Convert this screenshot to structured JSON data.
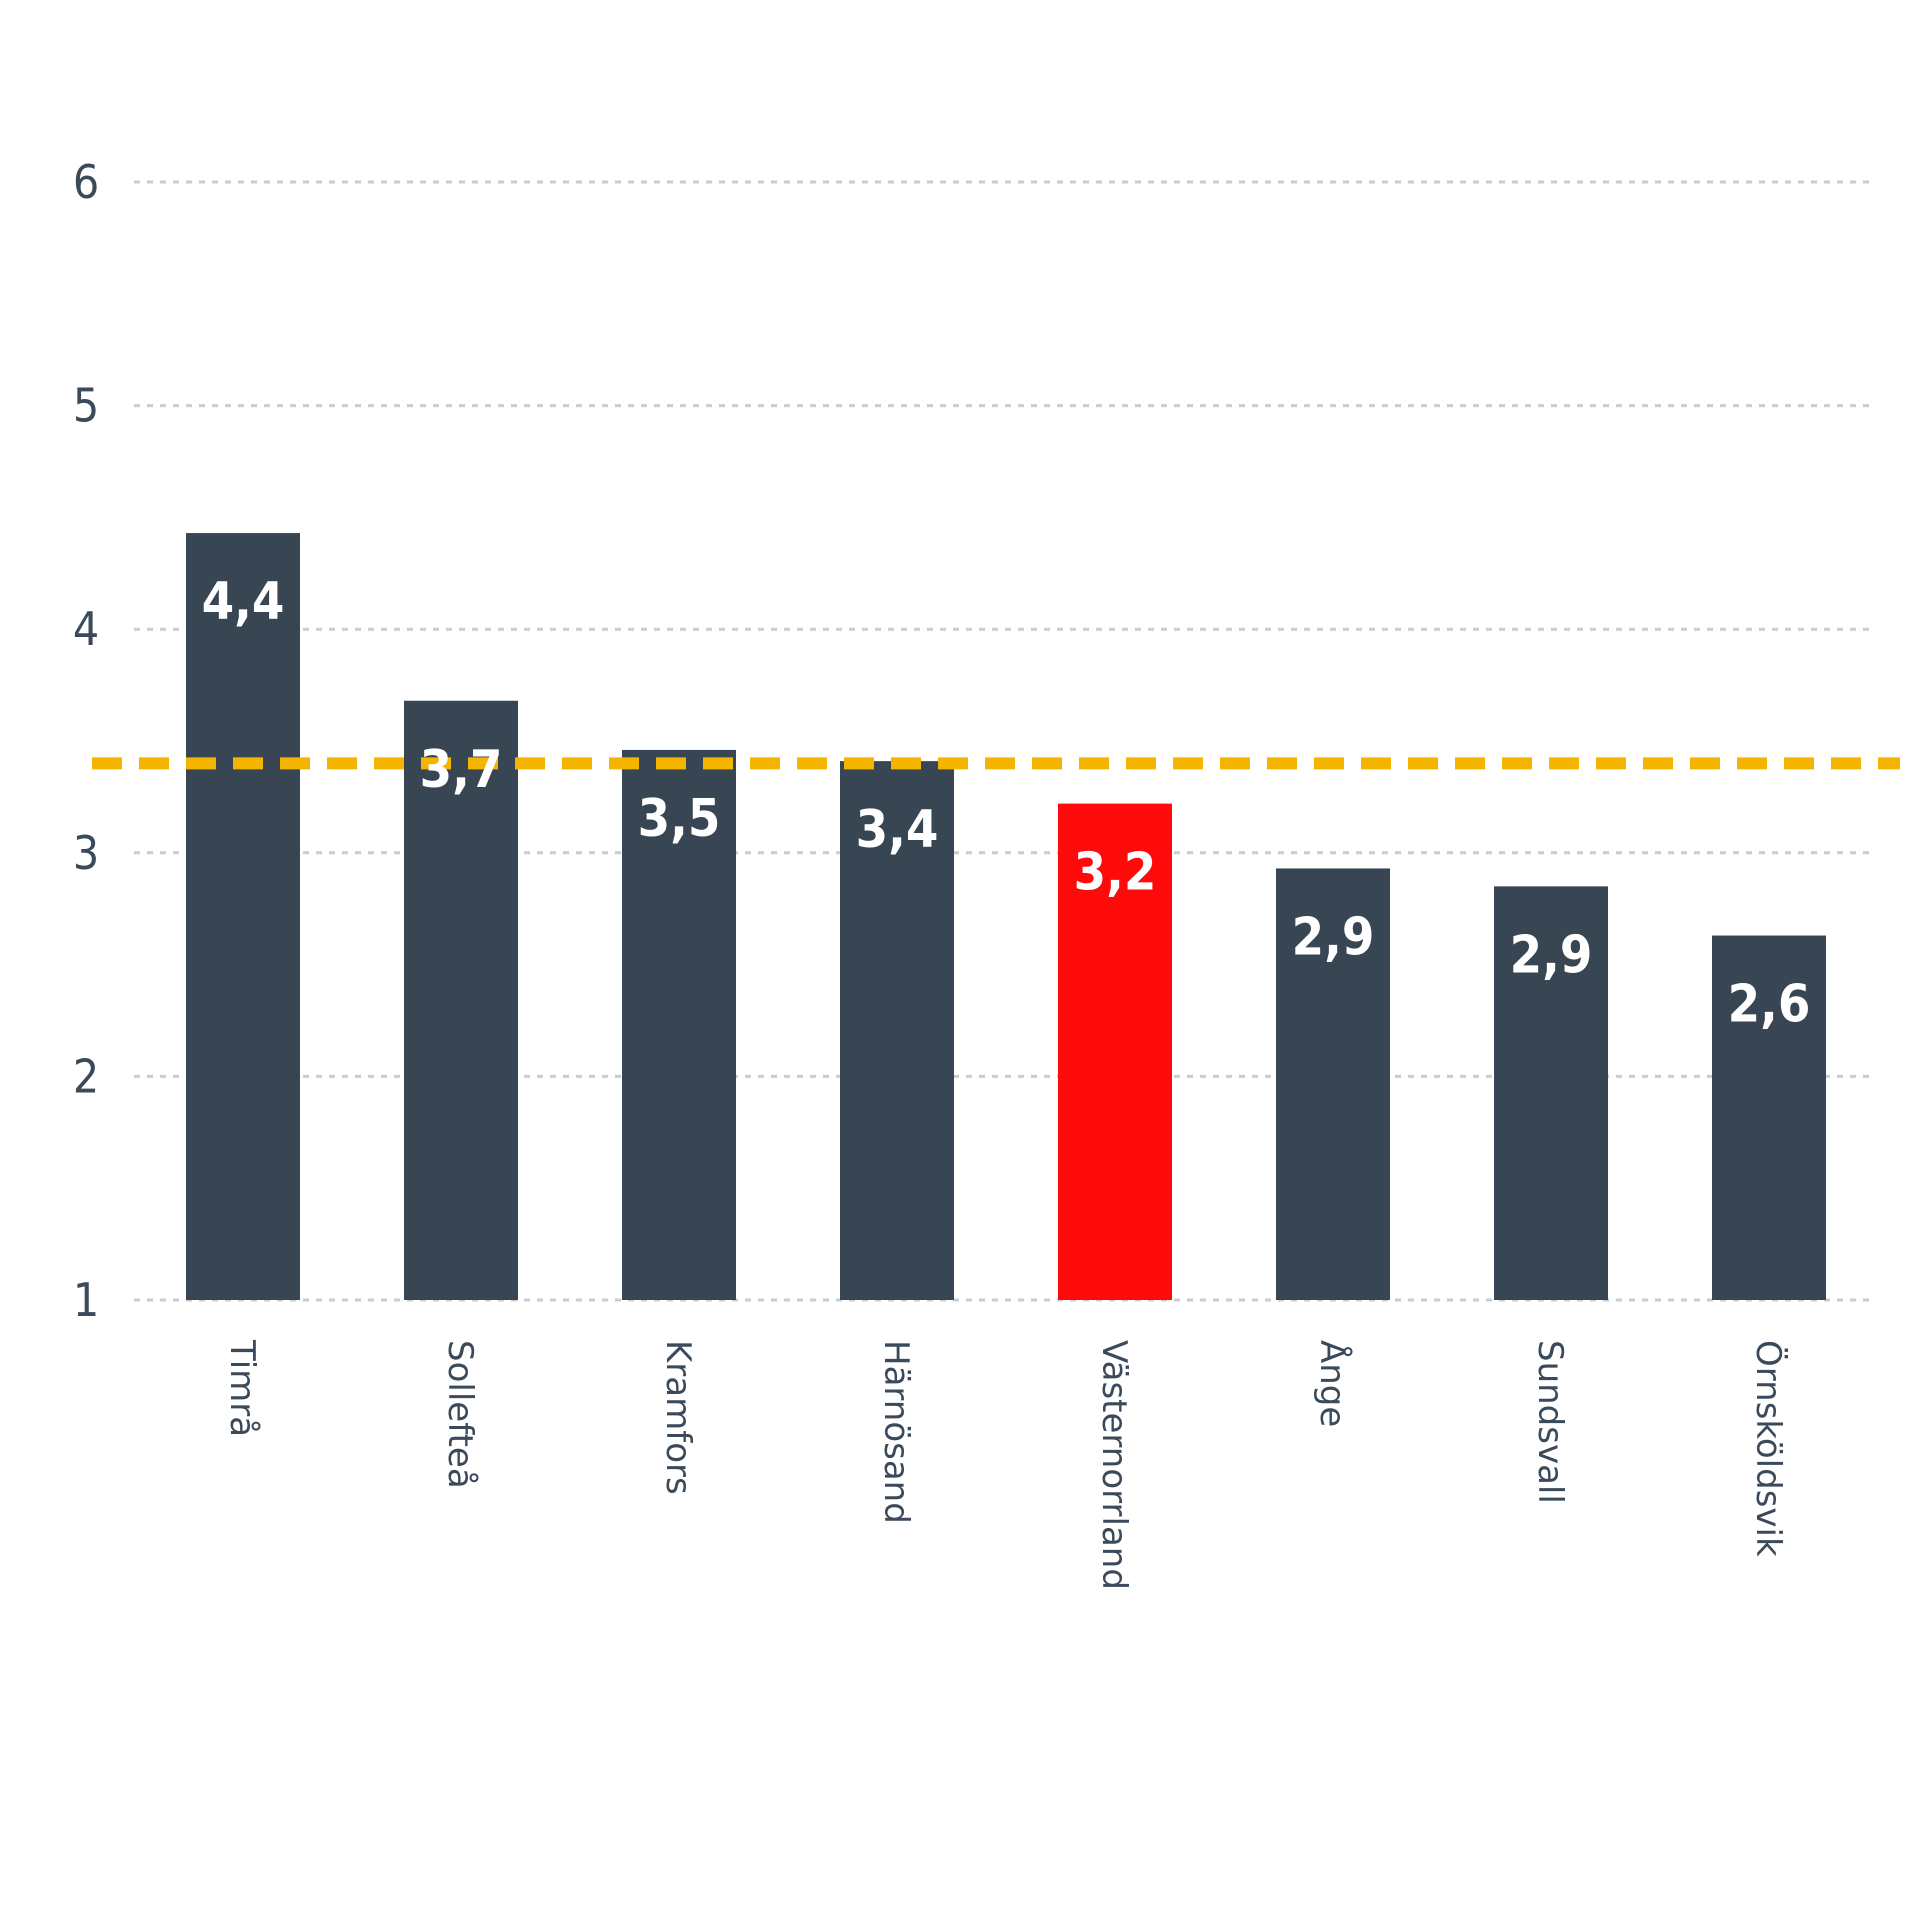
{
  "chart_data": {
    "type": "bar",
    "categories": [
      "Timrå",
      "Sollefteå",
      "Kramfors",
      "Härnösand",
      "Västernorrland",
      "Ånge",
      "Sundsvall",
      "Örnsköldsvik"
    ],
    "values": [
      4.43,
      3.68,
      3.46,
      3.41,
      3.22,
      2.93,
      2.85,
      2.63
    ],
    "value_labels": [
      "4,4",
      "3,7",
      "3,5",
      "3,4",
      "3,2",
      "2,9",
      "2,9",
      "2,6"
    ],
    "highlight_index": 4,
    "reference_line": 3.4,
    "y_ticks": [
      "1",
      "2",
      "3",
      "4",
      "5",
      "6"
    ],
    "ylim": [
      1,
      6
    ],
    "title": "",
    "xlabel": "",
    "ylabel": "",
    "grid": true,
    "colors": {
      "bar": "#384654",
      "highlight": "#ff0a0a",
      "reference_line": "#f5b400",
      "grid": "#cccccc",
      "text": "#3a4a5a"
    }
  }
}
